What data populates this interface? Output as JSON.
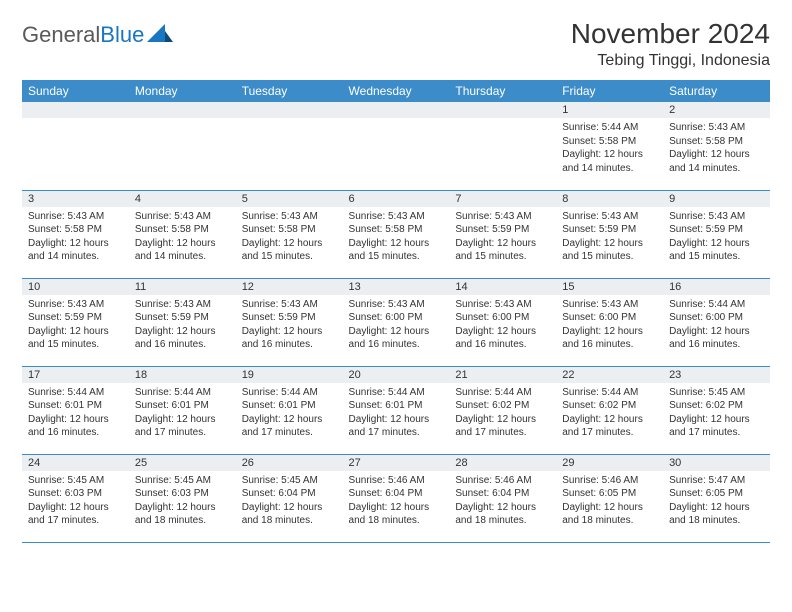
{
  "logo": {
    "text_gray": "General",
    "text_blue": "Blue"
  },
  "title": "November 2024",
  "location": "Tebing Tinggi, Indonesia",
  "colors": {
    "header_bg": "#3b8cc8",
    "header_text": "#ffffff",
    "daynum_bg": "#eceff1",
    "body_text": "#333333",
    "border": "#3b8cc8",
    "logo_gray": "#5a5a5a",
    "logo_blue": "#1976c0"
  },
  "typography": {
    "title_fontsize": 28,
    "location_fontsize": 16,
    "header_fontsize": 12,
    "daynum_fontsize": 11,
    "body_fontsize": 10,
    "font_family": "Arial"
  },
  "weekday_labels": [
    "Sunday",
    "Monday",
    "Tuesday",
    "Wednesday",
    "Thursday",
    "Friday",
    "Saturday"
  ],
  "weeks": [
    [
      {
        "day": "",
        "sunrise": "",
        "sunset": "",
        "daylight": ""
      },
      {
        "day": "",
        "sunrise": "",
        "sunset": "",
        "daylight": ""
      },
      {
        "day": "",
        "sunrise": "",
        "sunset": "",
        "daylight": ""
      },
      {
        "day": "",
        "sunrise": "",
        "sunset": "",
        "daylight": ""
      },
      {
        "day": "",
        "sunrise": "",
        "sunset": "",
        "daylight": ""
      },
      {
        "day": "1",
        "sunrise": "Sunrise: 5:44 AM",
        "sunset": "Sunset: 5:58 PM",
        "daylight": "Daylight: 12 hours and 14 minutes."
      },
      {
        "day": "2",
        "sunrise": "Sunrise: 5:43 AM",
        "sunset": "Sunset: 5:58 PM",
        "daylight": "Daylight: 12 hours and 14 minutes."
      }
    ],
    [
      {
        "day": "3",
        "sunrise": "Sunrise: 5:43 AM",
        "sunset": "Sunset: 5:58 PM",
        "daylight": "Daylight: 12 hours and 14 minutes."
      },
      {
        "day": "4",
        "sunrise": "Sunrise: 5:43 AM",
        "sunset": "Sunset: 5:58 PM",
        "daylight": "Daylight: 12 hours and 14 minutes."
      },
      {
        "day": "5",
        "sunrise": "Sunrise: 5:43 AM",
        "sunset": "Sunset: 5:58 PM",
        "daylight": "Daylight: 12 hours and 15 minutes."
      },
      {
        "day": "6",
        "sunrise": "Sunrise: 5:43 AM",
        "sunset": "Sunset: 5:58 PM",
        "daylight": "Daylight: 12 hours and 15 minutes."
      },
      {
        "day": "7",
        "sunrise": "Sunrise: 5:43 AM",
        "sunset": "Sunset: 5:59 PM",
        "daylight": "Daylight: 12 hours and 15 minutes."
      },
      {
        "day": "8",
        "sunrise": "Sunrise: 5:43 AM",
        "sunset": "Sunset: 5:59 PM",
        "daylight": "Daylight: 12 hours and 15 minutes."
      },
      {
        "day": "9",
        "sunrise": "Sunrise: 5:43 AM",
        "sunset": "Sunset: 5:59 PM",
        "daylight": "Daylight: 12 hours and 15 minutes."
      }
    ],
    [
      {
        "day": "10",
        "sunrise": "Sunrise: 5:43 AM",
        "sunset": "Sunset: 5:59 PM",
        "daylight": "Daylight: 12 hours and 15 minutes."
      },
      {
        "day": "11",
        "sunrise": "Sunrise: 5:43 AM",
        "sunset": "Sunset: 5:59 PM",
        "daylight": "Daylight: 12 hours and 16 minutes."
      },
      {
        "day": "12",
        "sunrise": "Sunrise: 5:43 AM",
        "sunset": "Sunset: 5:59 PM",
        "daylight": "Daylight: 12 hours and 16 minutes."
      },
      {
        "day": "13",
        "sunrise": "Sunrise: 5:43 AM",
        "sunset": "Sunset: 6:00 PM",
        "daylight": "Daylight: 12 hours and 16 minutes."
      },
      {
        "day": "14",
        "sunrise": "Sunrise: 5:43 AM",
        "sunset": "Sunset: 6:00 PM",
        "daylight": "Daylight: 12 hours and 16 minutes."
      },
      {
        "day": "15",
        "sunrise": "Sunrise: 5:43 AM",
        "sunset": "Sunset: 6:00 PM",
        "daylight": "Daylight: 12 hours and 16 minutes."
      },
      {
        "day": "16",
        "sunrise": "Sunrise: 5:44 AM",
        "sunset": "Sunset: 6:00 PM",
        "daylight": "Daylight: 12 hours and 16 minutes."
      }
    ],
    [
      {
        "day": "17",
        "sunrise": "Sunrise: 5:44 AM",
        "sunset": "Sunset: 6:01 PM",
        "daylight": "Daylight: 12 hours and 16 minutes."
      },
      {
        "day": "18",
        "sunrise": "Sunrise: 5:44 AM",
        "sunset": "Sunset: 6:01 PM",
        "daylight": "Daylight: 12 hours and 17 minutes."
      },
      {
        "day": "19",
        "sunrise": "Sunrise: 5:44 AM",
        "sunset": "Sunset: 6:01 PM",
        "daylight": "Daylight: 12 hours and 17 minutes."
      },
      {
        "day": "20",
        "sunrise": "Sunrise: 5:44 AM",
        "sunset": "Sunset: 6:01 PM",
        "daylight": "Daylight: 12 hours and 17 minutes."
      },
      {
        "day": "21",
        "sunrise": "Sunrise: 5:44 AM",
        "sunset": "Sunset: 6:02 PM",
        "daylight": "Daylight: 12 hours and 17 minutes."
      },
      {
        "day": "22",
        "sunrise": "Sunrise: 5:44 AM",
        "sunset": "Sunset: 6:02 PM",
        "daylight": "Daylight: 12 hours and 17 minutes."
      },
      {
        "day": "23",
        "sunrise": "Sunrise: 5:45 AM",
        "sunset": "Sunset: 6:02 PM",
        "daylight": "Daylight: 12 hours and 17 minutes."
      }
    ],
    [
      {
        "day": "24",
        "sunrise": "Sunrise: 5:45 AM",
        "sunset": "Sunset: 6:03 PM",
        "daylight": "Daylight: 12 hours and 17 minutes."
      },
      {
        "day": "25",
        "sunrise": "Sunrise: 5:45 AM",
        "sunset": "Sunset: 6:03 PM",
        "daylight": "Daylight: 12 hours and 18 minutes."
      },
      {
        "day": "26",
        "sunrise": "Sunrise: 5:45 AM",
        "sunset": "Sunset: 6:04 PM",
        "daylight": "Daylight: 12 hours and 18 minutes."
      },
      {
        "day": "27",
        "sunrise": "Sunrise: 5:46 AM",
        "sunset": "Sunset: 6:04 PM",
        "daylight": "Daylight: 12 hours and 18 minutes."
      },
      {
        "day": "28",
        "sunrise": "Sunrise: 5:46 AM",
        "sunset": "Sunset: 6:04 PM",
        "daylight": "Daylight: 12 hours and 18 minutes."
      },
      {
        "day": "29",
        "sunrise": "Sunrise: 5:46 AM",
        "sunset": "Sunset: 6:05 PM",
        "daylight": "Daylight: 12 hours and 18 minutes."
      },
      {
        "day": "30",
        "sunrise": "Sunrise: 5:47 AM",
        "sunset": "Sunset: 6:05 PM",
        "daylight": "Daylight: 12 hours and 18 minutes."
      }
    ]
  ]
}
